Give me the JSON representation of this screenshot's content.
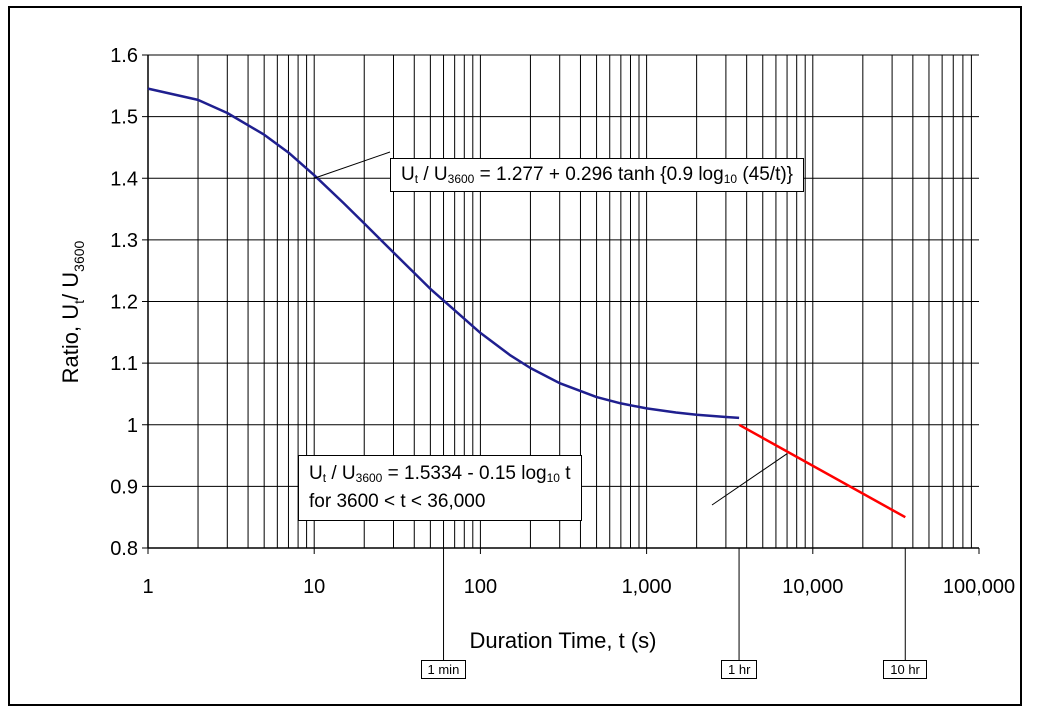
{
  "chart_data": {
    "type": "line",
    "xlabel": "Duration Time, t (s)",
    "ylabel": "Ratio, Ut/ U3600",
    "x_scale": "log",
    "xlim": [
      1,
      100000
    ],
    "ylim": [
      0.8,
      1.6
    ],
    "x_ticks": [
      1,
      10,
      100,
      1000,
      10000,
      100000
    ],
    "x_tick_labels": [
      "1",
      "10",
      "100",
      "1,000",
      "10,000",
      "100,000"
    ],
    "y_ticks": [
      0.8,
      0.9,
      1.0,
      1.1,
      1.2,
      1.3,
      1.4,
      1.5,
      1.6
    ],
    "y_tick_labels": [
      "0.8",
      "0.9",
      "1",
      "1.1",
      "1.2",
      "1.3",
      "1.4",
      "1.5",
      "1.6"
    ],
    "grid": true,
    "series": [
      {
        "color": "#1f1f8f",
        "x": [
          1,
          2,
          3,
          5,
          7,
          10,
          15,
          20,
          30,
          50,
          70,
          100,
          150,
          200,
          300,
          500,
          700,
          1000,
          1500,
          2000,
          3000,
          3600
        ],
        "y": [
          1.5455,
          1.5271,
          1.5059,
          1.4706,
          1.4417,
          1.4049,
          1.3599,
          1.3267,
          1.2795,
          1.2205,
          1.1857,
          1.1491,
          1.1133,
          1.0921,
          1.0674,
          1.0448,
          1.0346,
          1.0265,
          1.0199,
          1.0163,
          1.0125,
          1.0111
        ]
      },
      {
        "color": "#ff0000",
        "x": [
          3600,
          36000
        ],
        "y": [
          1.0,
          0.85
        ]
      }
    ],
    "annotations": [
      {
        "id": "upper-formula",
        "lines": [
          [
            {
              "t": "U"
            },
            {
              "t": "t",
              "sub": true
            },
            {
              "t": " / U"
            },
            {
              "t": "3600",
              "sub": true
            },
            {
              "t": " = 1.277 + 0.296 tanh {0.9 log"
            },
            {
              "t": "10",
              "sub": true
            },
            {
              "t": " (45/t)}"
            }
          ]
        ],
        "arrow_to": {
          "x": 10,
          "y": 1.4
        }
      },
      {
        "id": "lower-formula",
        "lines": [
          [
            {
              "t": "U"
            },
            {
              "t": "t",
              "sub": true
            },
            {
              "t": " / U"
            },
            {
              "t": "3600",
              "sub": true
            },
            {
              "t": " = 1.5334 - 0.15 log"
            },
            {
              "t": "10",
              "sub": true
            },
            {
              "t": " t"
            }
          ],
          [
            {
              "t": "for 3600 < t < 36,000"
            }
          ]
        ],
        "arrow_to": {
          "x": 7000,
          "y": 0.953
        }
      }
    ],
    "reference_marks": [
      {
        "label": "1 min",
        "x": 60
      },
      {
        "label": "1 hr",
        "x": 3600
      },
      {
        "label": "10 hr",
        "x": 36000
      }
    ]
  }
}
